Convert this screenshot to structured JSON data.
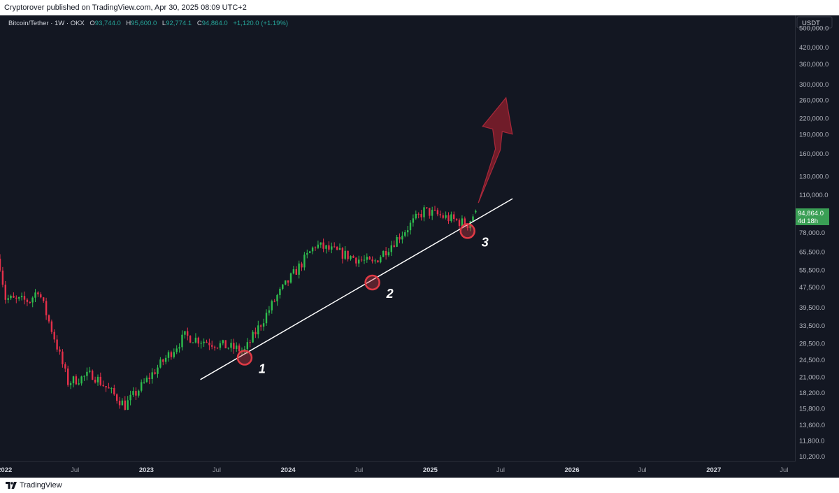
{
  "header": {
    "published": "Cryptorover published on TradingView.com, Apr 30, 2025 08:09 UTC+2"
  },
  "legend": {
    "symbol": "Bitcoin/Tether · 1W · OKX",
    "o_label": "O",
    "o": "93,744.0",
    "h_label": "H",
    "h": "95,600.0",
    "l_label": "L",
    "l": "92,774.1",
    "c_label": "C",
    "c": "94,864.0",
    "change": "+1,120.0 (+1.19%)"
  },
  "price_axis": {
    "currency": "USDT",
    "ticks": [
      "500,000.0",
      "420,000.0",
      "360,000.0",
      "300,000.0",
      "260,000.0",
      "220,000.0",
      "190,000.0",
      "160,000.0",
      "130,000.0",
      "110,000.0",
      "78,000.0",
      "65,500.0",
      "55,500.0",
      "47,500.0",
      "39,500.0",
      "33,500.0",
      "28,500.0",
      "24,500.0",
      "21,000.0",
      "18,200.0",
      "15,800.0",
      "13,600.0",
      "11,800.0",
      "10,200.0"
    ],
    "last_price": "94,864.0",
    "countdown": "4d 18h"
  },
  "time_axis": {
    "ticks": [
      {
        "label": "2022",
        "bold": true
      },
      {
        "label": "Jul",
        "bold": false
      },
      {
        "label": "2023",
        "bold": true
      },
      {
        "label": "Jul",
        "bold": false
      },
      {
        "label": "2024",
        "bold": true
      },
      {
        "label": "Jul",
        "bold": false
      },
      {
        "label": "2025",
        "bold": true
      },
      {
        "label": "Jul",
        "bold": false
      },
      {
        "label": "2026",
        "bold": true
      },
      {
        "label": "Jul",
        "bold": false
      },
      {
        "label": "2027",
        "bold": true
      },
      {
        "label": "Jul",
        "bold": false
      }
    ]
  },
  "annotations": {
    "touch_labels": [
      "1",
      "2",
      "3"
    ]
  },
  "footer": {
    "brand": "TradingView"
  },
  "colors": {
    "bg": "#131722",
    "up": "#26a69a",
    "down": "#ef5350",
    "green_candle": "#2ebd4e",
    "red_candle": "#e5304a",
    "arrow": "#8b1e2b",
    "trendline": "#ffffff",
    "circle": "#e03a45"
  },
  "chart_data": {
    "type": "candlestick",
    "title": "Bitcoin/Tether · 1W · OKX",
    "y_scale": "log",
    "ylim": [
      9800,
      560000
    ],
    "x_range": [
      "2021-12-20",
      "2027-07-31"
    ],
    "ohlc": [
      {
        "d": "2021-12-20",
        "o": 64000,
        "h": 69000,
        "c": 58000
      },
      {
        "d": "2022-01-03",
        "o": 47300,
        "h": 48000,
        "l": 40000,
        "c": 43000
      },
      {
        "d": "2022-01-31",
        "o": 38400,
        "h": 45000,
        "l": 36000,
        "c": 42000
      },
      {
        "d": "2022-03-07",
        "o": 38900,
        "h": 45000,
        "l": 37000,
        "c": 42000
      },
      {
        "d": "2022-03-28",
        "o": 47000,
        "h": 48200,
        "l": 42000,
        "c": 46500
      },
      {
        "d": "2022-05-09",
        "o": 35000,
        "h": 36000,
        "l": 25400,
        "c": 30000
      },
      {
        "d": "2022-06-13",
        "o": 26000,
        "h": 27000,
        "l": 17600,
        "c": 20000
      },
      {
        "d": "2022-08-15",
        "o": 24500,
        "h": 25200,
        "l": 20800,
        "c": 21500
      },
      {
        "d": "2022-11-07",
        "o": 21000,
        "h": 21400,
        "l": 15500,
        "c": 16200
      },
      {
        "d": "2023-01-09",
        "o": 17000,
        "h": 21400,
        "l": 16900,
        "c": 21000
      },
      {
        "d": "2023-04-10",
        "o": 28000,
        "h": 31000,
        "l": 27000,
        "c": 30400
      },
      {
        "d": "2023-09-11",
        "o": 25800,
        "h": 27000,
        "l": 24900,
        "c": 26600
      },
      {
        "d": "2023-12-04",
        "o": 38500,
        "h": 44500,
        "l": 38000,
        "c": 43800
      },
      {
        "d": "2024-03-11",
        "o": 68000,
        "h": 73800,
        "l": 64500,
        "c": 69500
      },
      {
        "d": "2024-08-05",
        "o": 58000,
        "h": 62500,
        "l": 49000,
        "c": 58700
      },
      {
        "d": "2024-12-16",
        "o": 104000,
        "h": 108000,
        "l": 92000,
        "c": 95000
      },
      {
        "d": "2025-04-07",
        "o": 78000,
        "h": 86000,
        "l": 74500,
        "c": 84000
      },
      {
        "d": "2025-04-28",
        "o": 93744,
        "h": 95600,
        "l": 92774.1,
        "c": 94864
      }
    ],
    "trendline": [
      {
        "x": "2023-05-20",
        "y": 20500
      },
      {
        "x": "2025-08-01",
        "y": 106000
      }
    ],
    "touch_points": [
      {
        "label": "1",
        "x": "2023-09-11",
        "y": 25000
      },
      {
        "label": "2",
        "x": "2024-08-05",
        "y": 49500
      },
      {
        "label": "3",
        "x": "2025-04-07",
        "y": 79000
      }
    ],
    "arrow": {
      "from": {
        "x": "2025-05-05",
        "y": 102000
      },
      "to": {
        "x": "2025-07-15",
        "y": 265000
      }
    }
  }
}
